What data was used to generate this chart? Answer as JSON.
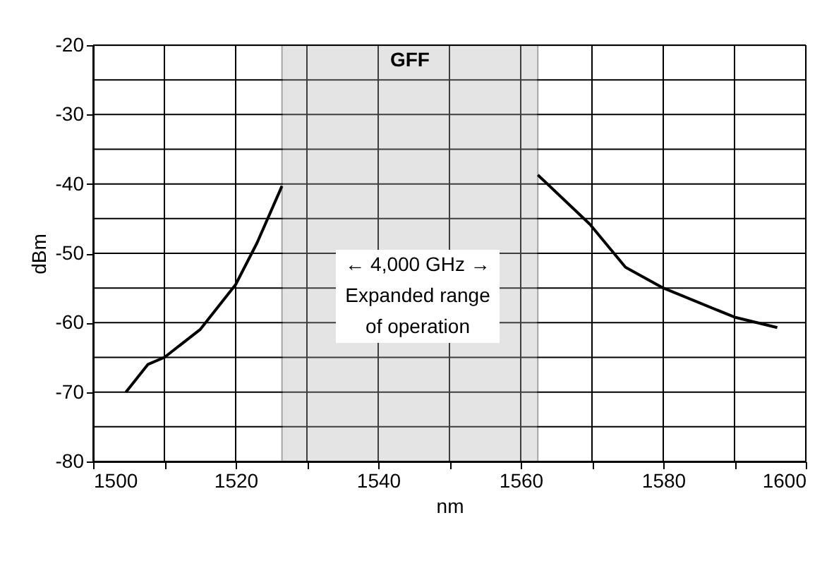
{
  "chart_data": {
    "type": "line",
    "xlabel": "nm",
    "ylabel": "dBm",
    "x": [
      1504.6,
      1507.7,
      1510,
      1515,
      1520,
      1523,
      1526.5,
      1545,
      1562.4,
      1569.7,
      1574.7,
      1580,
      1590,
      1596
    ],
    "series": [
      {
        "color": "#000000",
        "values": [
          -70,
          -66,
          -65,
          -61,
          -54.5,
          -48.5,
          -40.3,
          null,
          -38.7,
          -45.8,
          -52,
          -55,
          -59.2,
          -60.7
        ]
      }
    ],
    "xlim": [
      1500,
      1600
    ],
    "xticks": [
      1500,
      {
        "value": 1510,
        "label": null
      },
      1520,
      {
        "value": 1530,
        "label": null
      },
      1540,
      {
        "value": 1550,
        "label": null
      },
      1560,
      {
        "value": 1570,
        "label": null
      },
      1580,
      {
        "value": 1590,
        "label": null
      },
      1600
    ],
    "ylim": [
      -80,
      -20
    ],
    "yticks": [
      -80,
      {
        "value": -75,
        "label": null
      },
      -70,
      {
        "value": -65,
        "label": null
      },
      -60,
      {
        "value": -55,
        "label": null
      },
      -50,
      {
        "value": -45,
        "label": null
      },
      -40,
      {
        "value": -35,
        "label": null
      },
      -30,
      {
        "value": -25,
        "label": null
      },
      -20
    ],
    "grid": true,
    "marker": "none",
    "line_style": "solid",
    "bands": [
      {
        "axis": "x",
        "from": 1526.5,
        "to": 1562.4,
        "label": "GFF",
        "color": "#b3b3b3"
      }
    ],
    "annotations": [
      "← 4,000 GHz →",
      "Expanded range",
      "of operation"
    ]
  }
}
